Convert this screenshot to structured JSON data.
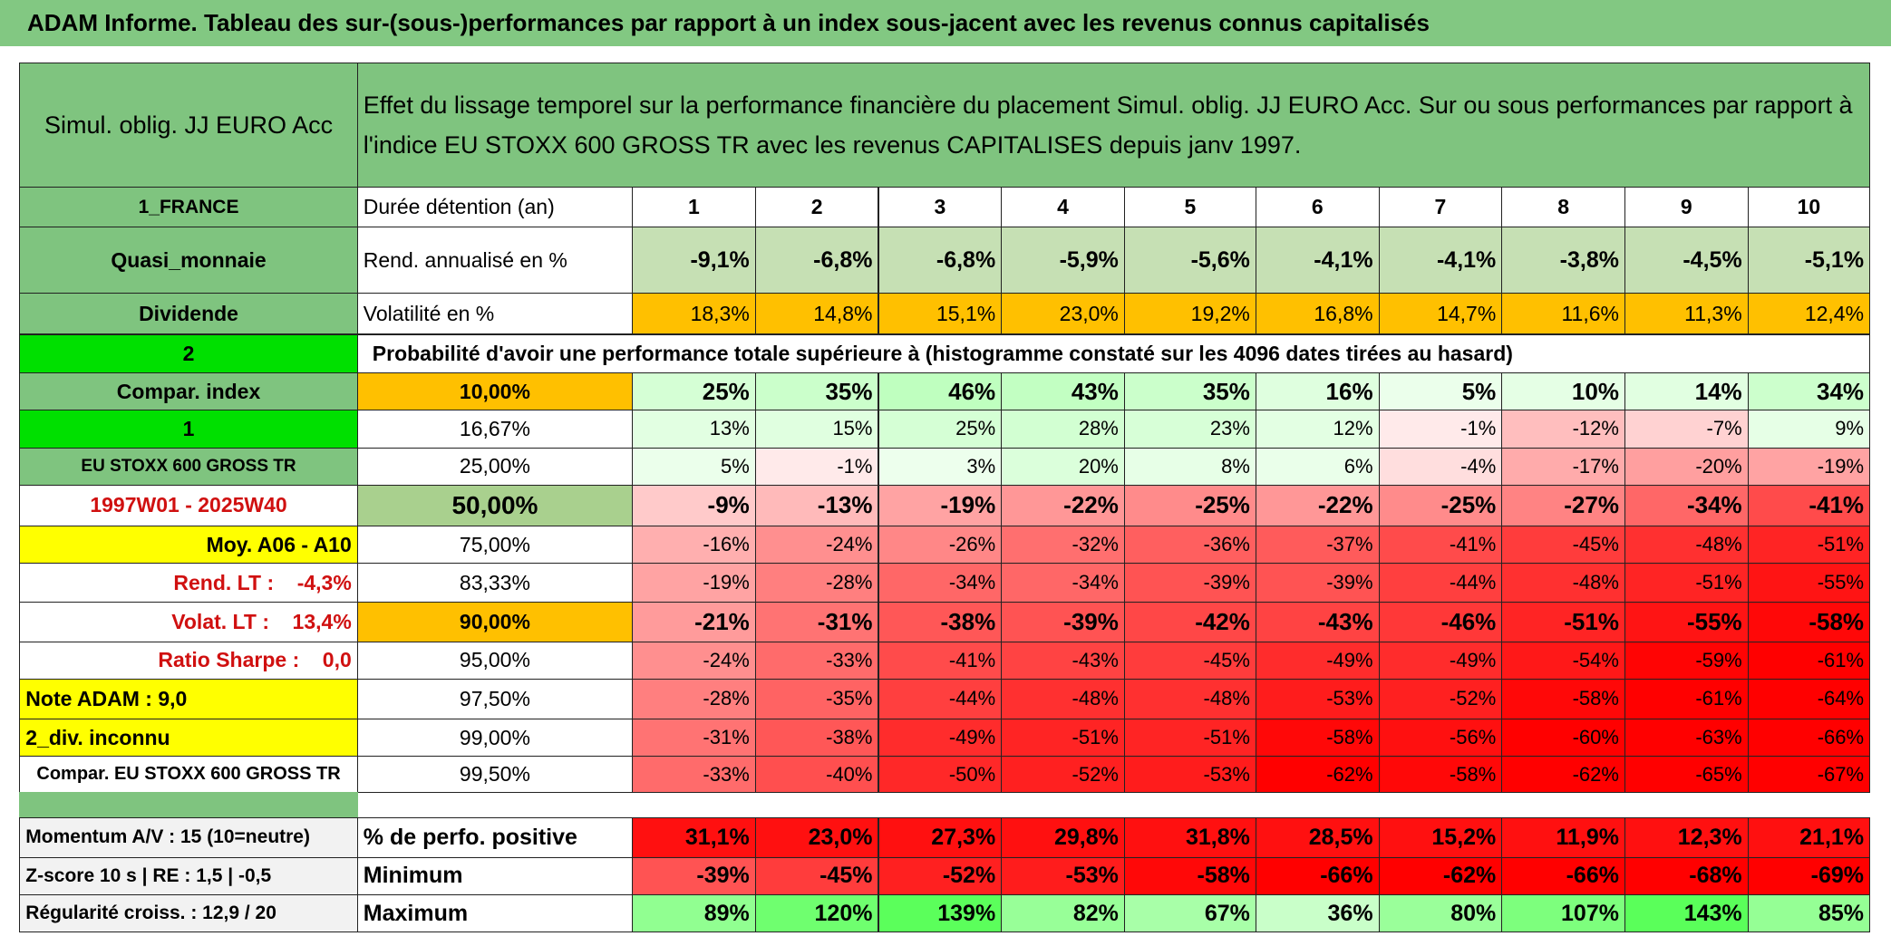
{
  "header": {
    "title": "ADAM Informe. Tableau des sur-(sous-)performances par rapport à un index sous-jacent avec les revenus connus capitalisés"
  },
  "fund_name": "Simul. oblig. JJ EURO Acc",
  "description": "Effet du lissage temporel sur la performance financière du placement Simul. oblig. JJ EURO Acc. Sur ou sous performances par rapport à l'indice EU STOXX 600 GROSS TR avec les revenus CAPITALISES depuis janv 1997.",
  "sidebar": [
    "1_FRANCE",
    "Quasi_monnaie",
    "Dividende",
    "2",
    "Compar. index",
    "1",
    "EU STOXX 600 GROSS TR",
    "1997W01 - 2025W40",
    "Moy. A06 - A10",
    "Rend. LT :    -4,3%",
    "Volat. LT :    13,4%",
    "Ratio Sharpe :    0,0",
    "Note ADAM : 9,0",
    "2_div. inconnu",
    "Compar. EU STOXX 600 GROSS TR"
  ],
  "summary": {
    "horizon_label": "Durée détention (an)",
    "horizons": [
      "1",
      "2",
      "3",
      "4",
      "5",
      "6",
      "7",
      "8",
      "9",
      "10"
    ],
    "rows": [
      {
        "label": "Rend. annualisé en %",
        "values": [
          "-9,1%",
          "-6,8%",
          "-6,8%",
          "-5,9%",
          "-5,6%",
          "-4,1%",
          "-4,1%",
          "-3,8%",
          "-4,5%",
          "-5,1%"
        ]
      },
      {
        "label": "Volatilité en %",
        "values": [
          "18,3%",
          "14,8%",
          "15,1%",
          "23,0%",
          "19,2%",
          "16,8%",
          "14,7%",
          "11,6%",
          "11,3%",
          "12,4%"
        ]
      }
    ]
  },
  "probability_title": "Probabilité d'avoir une performance totale supérieure à (histogramme constaté sur les 4096 dates tirées au hasard)",
  "quantiles": [
    {
      "level": "10,00%",
      "values": [
        "25%",
        "35%",
        "46%",
        "43%",
        "35%",
        "16%",
        "5%",
        "10%",
        "14%",
        "34%"
      ]
    },
    {
      "level": "16,67%",
      "values": [
        "13%",
        "15%",
        "25%",
        "28%",
        "23%",
        "12%",
        "-1%",
        "-12%",
        "-7%",
        "9%"
      ]
    },
    {
      "level": "25,00%",
      "values": [
        "5%",
        "-1%",
        "3%",
        "20%",
        "8%",
        "6%",
        "-4%",
        "-17%",
        "-20%",
        "-19%"
      ]
    },
    {
      "level": "50,00%",
      "values": [
        "-9%",
        "-13%",
        "-19%",
        "-22%",
        "-25%",
        "-22%",
        "-25%",
        "-27%",
        "-34%",
        "-41%"
      ]
    },
    {
      "level": "75,00%",
      "values": [
        "-16%",
        "-24%",
        "-26%",
        "-32%",
        "-36%",
        "-37%",
        "-41%",
        "-45%",
        "-48%",
        "-51%"
      ]
    },
    {
      "level": "83,33%",
      "values": [
        "-19%",
        "-28%",
        "-34%",
        "-34%",
        "-39%",
        "-39%",
        "-44%",
        "-48%",
        "-51%",
        "-55%"
      ]
    },
    {
      "level": "90,00%",
      "values": [
        "-21%",
        "-31%",
        "-38%",
        "-39%",
        "-42%",
        "-43%",
        "-46%",
        "-51%",
        "-55%",
        "-58%"
      ]
    },
    {
      "level": "95,00%",
      "values": [
        "-24%",
        "-33%",
        "-41%",
        "-43%",
        "-45%",
        "-49%",
        "-49%",
        "-54%",
        "-59%",
        "-61%"
      ]
    },
    {
      "level": "97,50%",
      "values": [
        "-28%",
        "-35%",
        "-44%",
        "-48%",
        "-48%",
        "-53%",
        "-52%",
        "-58%",
        "-61%",
        "-64%"
      ]
    },
    {
      "level": "99,00%",
      "values": [
        "-31%",
        "-38%",
        "-49%",
        "-51%",
        "-51%",
        "-58%",
        "-56%",
        "-60%",
        "-63%",
        "-66%"
      ]
    },
    {
      "level": "99,50%",
      "values": [
        "-33%",
        "-40%",
        "-50%",
        "-52%",
        "-53%",
        "-62%",
        "-58%",
        "-62%",
        "-65%",
        "-67%"
      ]
    }
  ],
  "indicators": [
    "Momentum A/V : 15 (10=neutre)",
    "Z-score 10 s | RE : 1,5 | -0,5",
    "Régularité croiss. : 12,9 / 20"
  ],
  "stats": [
    {
      "label": "% de perfo. positive",
      "values": [
        "31,1%",
        "23,0%",
        "27,3%",
        "29,8%",
        "31,8%",
        "28,5%",
        "15,2%",
        "11,9%",
        "12,3%",
        "21,1%"
      ]
    },
    {
      "label": "Minimum",
      "values": [
        "-39%",
        "-45%",
        "-52%",
        "-53%",
        "-58%",
        "-66%",
        "-62%",
        "-66%",
        "-68%",
        "-69%"
      ]
    },
    {
      "label": "Maximum",
      "values": [
        "89%",
        "120%",
        "139%",
        "82%",
        "67%",
        "36%",
        "80%",
        "107%",
        "143%",
        "85%"
      ]
    }
  ]
}
